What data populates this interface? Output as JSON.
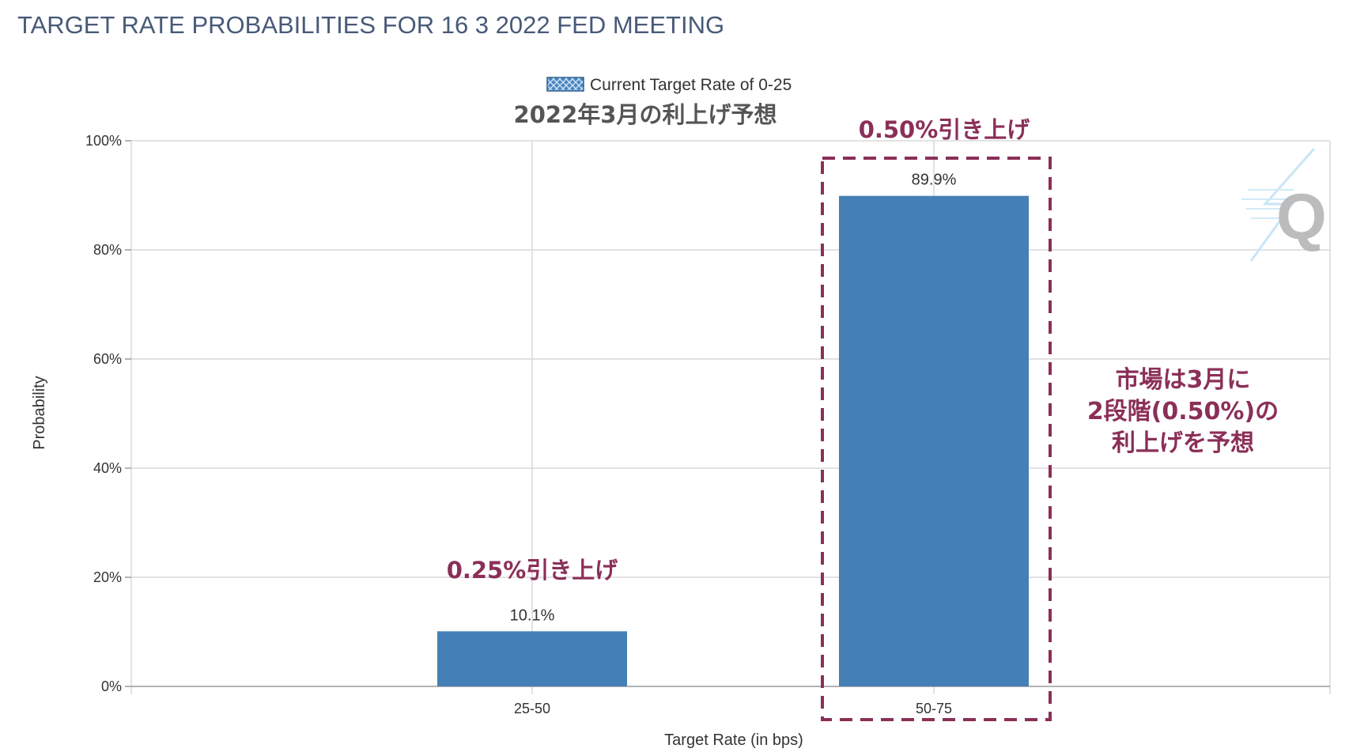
{
  "page_title": "TARGET RATE PROBABILITIES FOR 16 3 2022 FED MEETING",
  "legend": {
    "label": "Current Target Rate of 0-25"
  },
  "chart_data": {
    "type": "bar",
    "title": "2022年3月の利上げ予想",
    "xlabel": "Target Rate (in bps)",
    "ylabel": "Probability",
    "categories": [
      "25-50",
      "50-75"
    ],
    "values": [
      10.1,
      89.9
    ],
    "value_labels": [
      "10.1%",
      "89.9%"
    ],
    "ylim": [
      0,
      100
    ],
    "yticks": [
      "0%",
      "20%",
      "40%",
      "60%",
      "80%",
      "100%"
    ],
    "grid": true,
    "legend_position": "top",
    "bar_color": "#4480b5"
  },
  "annotations": {
    "bar1": "0.25%引き上げ",
    "bar2": "0.50%引き上げ",
    "note_lines": [
      "市場は3月に",
      "2段階(0.50%)の",
      "利上げを予想"
    ],
    "color": "#8b2f58"
  },
  "watermark": {
    "letter": "Q",
    "icon": "quikstrike-logo-icon"
  }
}
